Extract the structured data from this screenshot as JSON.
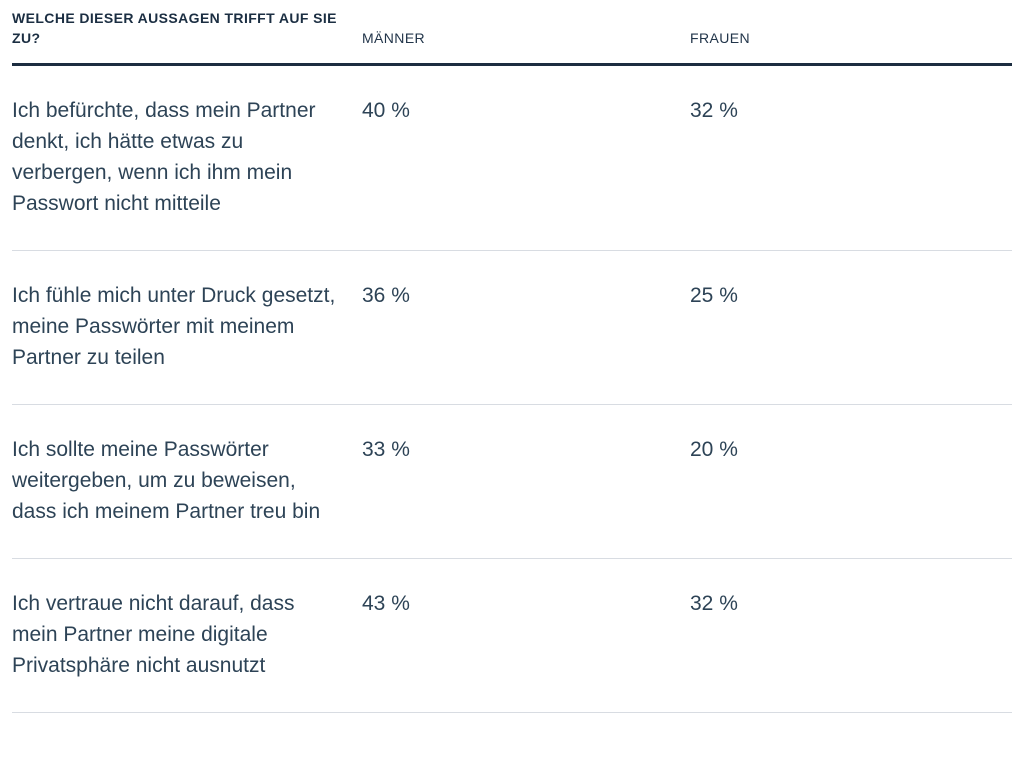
{
  "table": {
    "header": {
      "statement": "WELCHE DIESER AUSSAGEN TRIFFT AUF SIE ZU?",
      "men": "MÄNNER",
      "women": "FRAUEN"
    },
    "rows": [
      {
        "statement": "Ich befürchte, dass mein Partner denkt, ich hätte etwas zu verbergen, wenn ich ihm mein Passwort nicht mitteile",
        "men": "40 %",
        "women": "32 %"
      },
      {
        "statement": "Ich fühle mich unter Druck gesetzt, meine Passwörter mit meinem Partner zu teilen",
        "men": "36 %",
        "women": "25 %"
      },
      {
        "statement": "Ich sollte meine Passwörter weitergeben, um zu beweisen, dass ich meinem Partner treu bin",
        "men": "33 %",
        "women": "20 %"
      },
      {
        "statement": "Ich vertraue nicht darauf, dass mein Partner meine digitale Privatsphäre nicht ausnutzt",
        "men": "43 %",
        "women": "32 %"
      }
    ],
    "colors": {
      "text": "#2d4356",
      "header_text": "#1b2e42",
      "header_rule": "#1c2d40",
      "row_divider": "#d8dce2"
    }
  },
  "chart_data": {
    "type": "table",
    "title": "WELCHE DIESER AUSSAGEN TRIFFT AUF SIE ZU?",
    "columns": [
      "WELCHE DIESER AUSSAGEN TRIFFT AUF SIE ZU?",
      "MÄNNER",
      "FRAUEN"
    ],
    "categories": [
      "Ich befürchte, dass mein Partner denkt, ich hätte etwas zu verbergen, wenn ich ihm mein Passwort nicht mitteile",
      "Ich fühle mich unter Druck gesetzt, meine Passwörter mit meinem Partner zu teilen",
      "Ich sollte meine Passwörter weitergeben, um zu beweisen, dass ich meinem Partner treu bin",
      "Ich vertraue nicht darauf, dass mein Partner meine digitale Privatsphäre nicht ausnutzt"
    ],
    "series": [
      {
        "name": "MÄNNER",
        "values": [
          40,
          36,
          33,
          43
        ]
      },
      {
        "name": "FRAUEN",
        "values": [
          32,
          25,
          20,
          32
        ]
      }
    ],
    "value_unit": "%",
    "layout": {
      "grid": "horizontal row dividers",
      "legend": "none",
      "header_rule": "thick dark line under column headers"
    }
  }
}
